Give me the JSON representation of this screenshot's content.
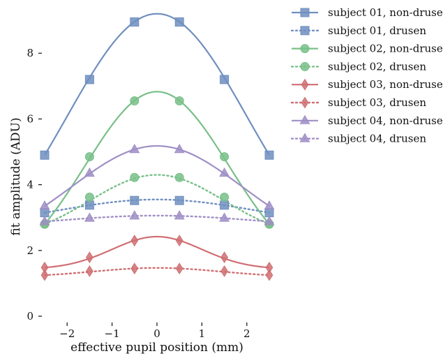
{
  "chart_data": {
    "type": "line",
    "title": "",
    "xlabel": "effective pupil position (mm)",
    "ylabel": "fit amplitude (ADU)",
    "xlim": [
      -2.5,
      2.5
    ],
    "ylim": [
      0,
      9.3
    ],
    "x_ticks": [
      "−2",
      "−1",
      "0",
      "1",
      "2"
    ],
    "x_tick_values": [
      -2,
      -1,
      0,
      1,
      2
    ],
    "y_ticks": [
      "0",
      "2",
      "4",
      "6",
      "8"
    ],
    "y_tick_values": [
      0,
      2,
      4,
      6,
      8
    ],
    "grid": false,
    "legend_position": "outside-right",
    "x": [
      -2.5,
      -1.5,
      -0.5,
      0.5,
      1.5,
      2.5
    ],
    "series": [
      {
        "name": "subject 01, non-drusen",
        "color": "#6f8fc0",
        "marker": "square",
        "dashed": false,
        "values": [
          4.9,
          7.2,
          8.95,
          8.95,
          7.2,
          4.9
        ],
        "peak": 9.2,
        "width": 2.0
      },
      {
        "name": "subject 01, drusen",
        "color": "#6f8fc0",
        "marker": "square",
        "dashed": true,
        "values": [
          3.15,
          3.38,
          3.52,
          3.52,
          3.38,
          3.15
        ],
        "peak": 3.55,
        "width": 2.2
      },
      {
        "name": "subject 02, non-drusen",
        "color": "#78bf88",
        "marker": "circle",
        "dashed": false,
        "values": [
          2.8,
          4.85,
          6.55,
          6.55,
          4.85,
          2.8
        ],
        "peak": 6.83,
        "width": 1.6
      },
      {
        "name": "subject 02, drusen",
        "color": "#78bf88",
        "marker": "circle",
        "dashed": true,
        "values": [
          2.8,
          3.62,
          4.22,
          4.22,
          3.62,
          2.8
        ],
        "peak": 4.3,
        "width": 1.5
      },
      {
        "name": "subject 03, non-drusen",
        "color": "#cf6e72",
        "marker": "diamond",
        "dashed": false,
        "values": [
          1.48,
          1.79,
          2.3,
          2.3,
          1.79,
          1.48
        ],
        "peak": 2.42,
        "width": 1.0
      },
      {
        "name": "subject 03, drusen",
        "color": "#cf6e72",
        "marker": "diamond",
        "dashed": true,
        "values": [
          1.25,
          1.37,
          1.45,
          1.45,
          1.37,
          1.25
        ],
        "peak": 1.47,
        "width": 1.4
      },
      {
        "name": "subject 04, non-drusen",
        "color": "#9f8ec6",
        "marker": "triangle",
        "dashed": false,
        "values": [
          3.35,
          4.35,
          5.07,
          5.07,
          4.35,
          3.35
        ],
        "peak": 5.18,
        "width": 1.9
      },
      {
        "name": "subject 04, drusen",
        "color": "#9f8ec6",
        "marker": "triangle",
        "dashed": true,
        "values": [
          2.88,
          2.98,
          3.05,
          3.05,
          2.98,
          2.88
        ],
        "peak": 3.06,
        "width": 2.2
      }
    ]
  }
}
